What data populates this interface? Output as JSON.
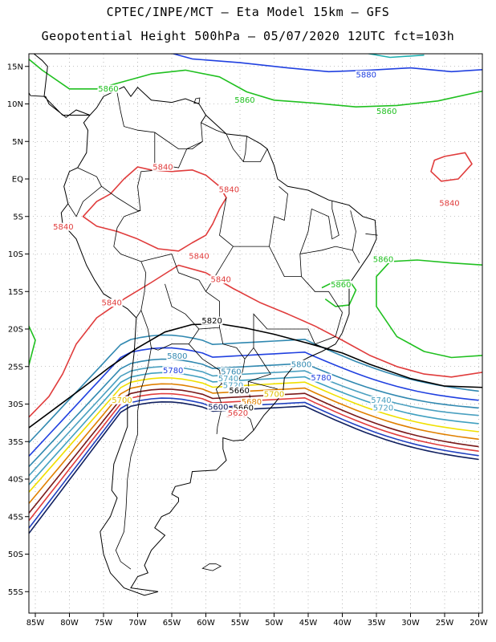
{
  "title_line1": "CPTEC/INPE/MCT –  Eta Model 15km – GFS",
  "title_line2": "Geopotential Height 500hPa – 05/07/2020 12UTC fct=103h",
  "lat_labels": [
    "15N",
    "10N",
    "5N",
    "EQ",
    "5S",
    "10S",
    "15S",
    "20S",
    "25S",
    "30S",
    "35S",
    "40S",
    "45S",
    "50S",
    "55S"
  ],
  "lat_values": [
    15,
    10,
    5,
    0,
    -5,
    -10,
    -15,
    -20,
    -25,
    -30,
    -35,
    -40,
    -45,
    -50,
    -55
  ],
  "lon_labels": [
    "85W",
    "80W",
    "75W",
    "70W",
    "65W",
    "60W",
    "55W",
    "50W",
    "45W",
    "40W",
    "35W",
    "30W",
    "25W",
    "20W"
  ],
  "lon_values": [
    -85,
    -80,
    -75,
    -70,
    -65,
    -60,
    -55,
    -50,
    -45,
    -40,
    -35,
    -30,
    -25,
    -20
  ],
  "contour_labels": [
    {
      "text": "5880",
      "color": "#2040e0",
      "lon": -36.5,
      "lat": 13.7
    },
    {
      "text": "5860",
      "color": "#20c020",
      "lon": -74.3,
      "lat": 11.8
    },
    {
      "text": "5860",
      "color": "#20c020",
      "lon": -54.3,
      "lat": 10.3
    },
    {
      "text": "5860",
      "color": "#20c020",
      "lon": -33.5,
      "lat": 8.8
    },
    {
      "text": "5840",
      "color": "#e03c3c",
      "lon": -66.3,
      "lat": 1.4
    },
    {
      "text": "5840",
      "color": "#e03c3c",
      "lon": -56.6,
      "lat": -1.6
    },
    {
      "text": "5840",
      "color": "#e03c3c",
      "lon": -80.9,
      "lat": -6.6
    },
    {
      "text": "5840",
      "color": "#e03c3c",
      "lon": -24.3,
      "lat": -3.4
    },
    {
      "text": "5840",
      "color": "#e03c3c",
      "lon": -61.0,
      "lat": -10.5
    },
    {
      "text": "5840",
      "color": "#e03c3c",
      "lon": -57.8,
      "lat": -13.6
    },
    {
      "text": "5840",
      "color": "#e03c3c",
      "lon": -73.8,
      "lat": -16.7
    },
    {
      "text": "5860",
      "color": "#20c020",
      "lon": -34.0,
      "lat": -10.9
    },
    {
      "text": "5860",
      "color": "#20c020",
      "lon": -40.2,
      "lat": -14.3
    },
    {
      "text": "5820",
      "color": "#000000",
      "lon": -59.1,
      "lat": -19.1
    },
    {
      "text": "5800",
      "color": "#3088b0",
      "lon": -64.2,
      "lat": -23.8
    },
    {
      "text": "5800",
      "color": "#3088b0",
      "lon": -46.0,
      "lat": -24.9
    },
    {
      "text": "5780",
      "color": "#2040e0",
      "lon": -64.8,
      "lat": -25.7
    },
    {
      "text": "5780",
      "color": "#2040e0",
      "lon": -43.1,
      "lat": -26.7
    },
    {
      "text": "5760",
      "color": "#3088b0",
      "lon": -56.3,
      "lat": -25.9
    },
    {
      "text": "5740",
      "color": "#4aa0c0",
      "lon": -56.7,
      "lat": -26.8
    },
    {
      "text": "5720",
      "color": "#4aa0c0",
      "lon": -56.0,
      "lat": -27.7
    },
    {
      "text": "5700",
      "color": "#e0c000",
      "lon": -50.0,
      "lat": -28.9
    },
    {
      "text": "5680",
      "color": "#e08000",
      "lon": -53.3,
      "lat": -29.9
    },
    {
      "text": "5660",
      "color": "#000000",
      "lon": -54.5,
      "lat": -30.7
    },
    {
      "text": "5640",
      "color": "#e03c3c",
      "lon": -55.5,
      "lat": -31.6
    },
    {
      "text": "5620",
      "color": "#e03c3c",
      "lon": -55.3,
      "lat": -31.4
    },
    {
      "text": "5600",
      "color": "#102060",
      "lon": -58.2,
      "lat": -30.6
    },
    {
      "text": "5700",
      "color": "#e0c000",
      "lon": -72.3,
      "lat": -29.7
    },
    {
      "text": "5740",
      "color": "#4aa0c0",
      "lon": -34.3,
      "lat": -29.7
    },
    {
      "text": "5720",
      "color": "#4aa0c0",
      "lon": -34.0,
      "lat": -30.7
    },
    {
      "text": "5660",
      "color": "#000000",
      "lon": -55.1,
      "lat": -28.4
    }
  ],
  "colors": {
    "c5600": "#102060",
    "c5620": "#2040c0",
    "c5640": "#e03c3c",
    "c5660": "#7a1a1a",
    "c5680": "#e08000",
    "c5700": "#f0e000",
    "c5720": "#40a0c0",
    "c5740": "#4aa0c0",
    "c5760": "#3088b0",
    "c5780": "#2040e0",
    "c5800": "#3088b0",
    "c5820": "#000000",
    "c5840": "#e03c3c",
    "c5860": "#20c020",
    "c5880": "#2040e0",
    "c5900": "#20b0b0"
  }
}
